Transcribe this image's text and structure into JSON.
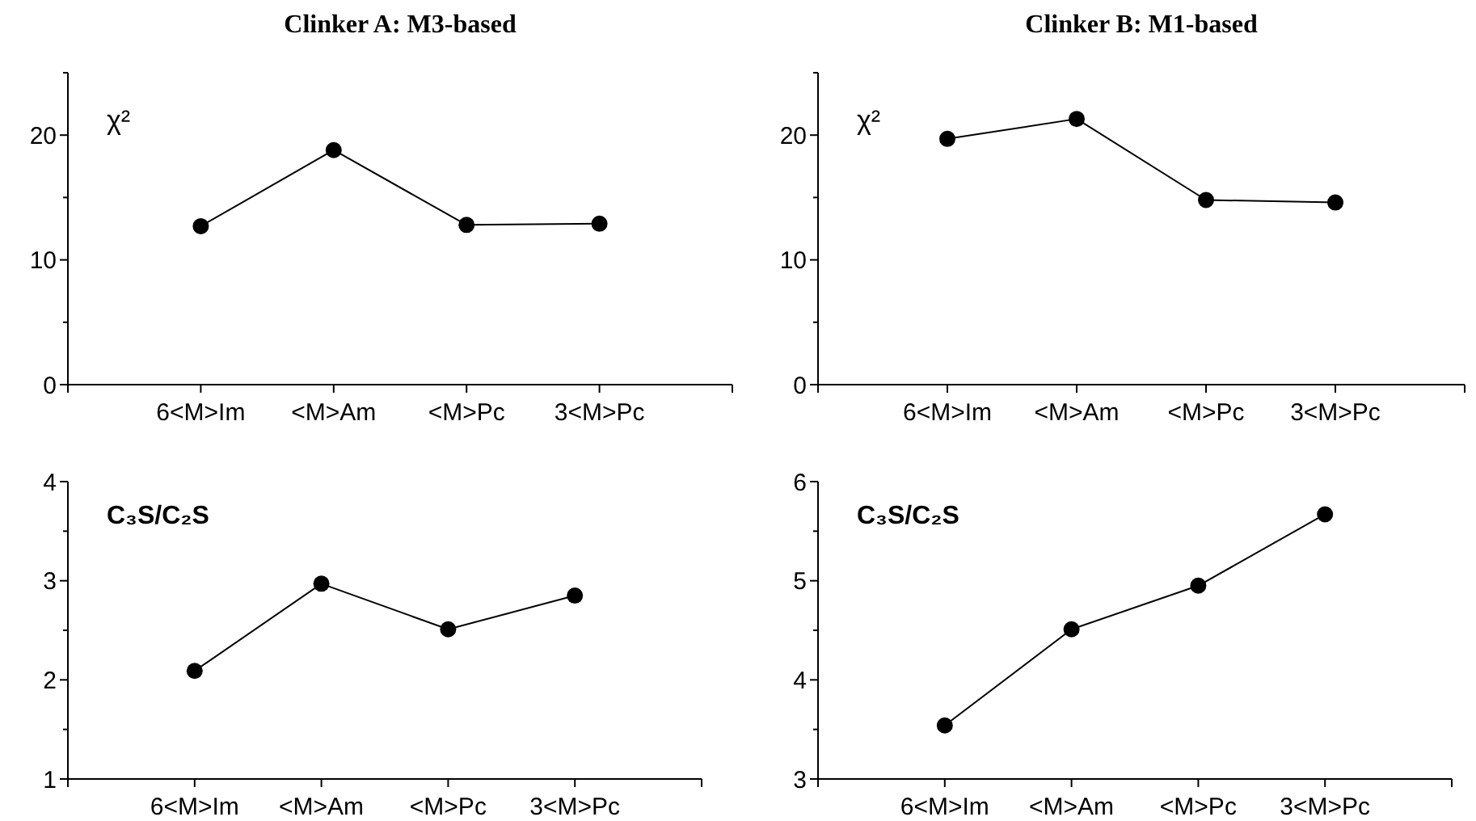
{
  "chart_data": [
    {
      "type": "line",
      "title": "Clinker A: M3-based",
      "ylabel": "χ²",
      "categories": [
        "6<M>Im",
        "<M>Am",
        "<M>Pc",
        "3<M>Pc"
      ],
      "series": [
        {
          "color": "#000000",
          "values": [
            12.7,
            18.8,
            12.8,
            12.9
          ]
        }
      ],
      "ylim": [
        0,
        25
      ],
      "yticks": [
        0,
        {
          "value": 5,
          "label": null
        },
        10,
        {
          "value": 15,
          "label": null
        },
        20,
        {
          "value": 25,
          "label": null
        }
      ],
      "marker": "circle",
      "line_style": "solid",
      "grid": false
    },
    {
      "type": "line",
      "title": "Clinker B: M1-based",
      "ylabel": "χ²",
      "categories": [
        "6<M>Im",
        "<M>Am",
        "<M>Pc",
        "3<M>Pc"
      ],
      "series": [
        {
          "color": "#000000",
          "values": [
            19.7,
            21.3,
            14.8,
            14.6
          ]
        }
      ],
      "ylim": [
        0,
        25
      ],
      "yticks": [
        0,
        {
          "value": 5,
          "label": null
        },
        10,
        {
          "value": 15,
          "label": null
        },
        20,
        {
          "value": 25,
          "label": null
        }
      ],
      "marker": "circle",
      "line_style": "solid",
      "grid": false
    },
    {
      "type": "line",
      "ylabel": "C₃S/C₂S",
      "categories": [
        "6<M>Im",
        "<M>Am",
        "<M>Pc",
        "3<M>Pc"
      ],
      "series": [
        {
          "color": "#000000",
          "values": [
            2.09,
            2.97,
            2.51,
            2.85
          ]
        }
      ],
      "ylim": [
        1,
        4
      ],
      "yticks": [
        1,
        {
          "value": 1.5,
          "label": null
        },
        2,
        {
          "value": 2.5,
          "label": null
        },
        3,
        {
          "value": 3.5,
          "label": null
        },
        4
      ],
      "marker": "circle",
      "line_style": "solid",
      "grid": false
    },
    {
      "type": "line",
      "ylabel": "C₃S/C₂S",
      "categories": [
        "6<M>Im",
        "<M>Am",
        "<M>Pc",
        "3<M>Pc"
      ],
      "series": [
        {
          "color": "#000000",
          "values": [
            3.54,
            4.51,
            4.95,
            5.67
          ]
        }
      ],
      "ylim": [
        3,
        6
      ],
      "yticks": [
        3,
        {
          "value": 3.5,
          "label": null
        },
        4,
        {
          "value": 4.5,
          "label": null
        },
        5,
        {
          "value": 5.5,
          "label": null
        },
        6
      ],
      "marker": "circle",
      "line_style": "solid",
      "grid": false
    }
  ]
}
